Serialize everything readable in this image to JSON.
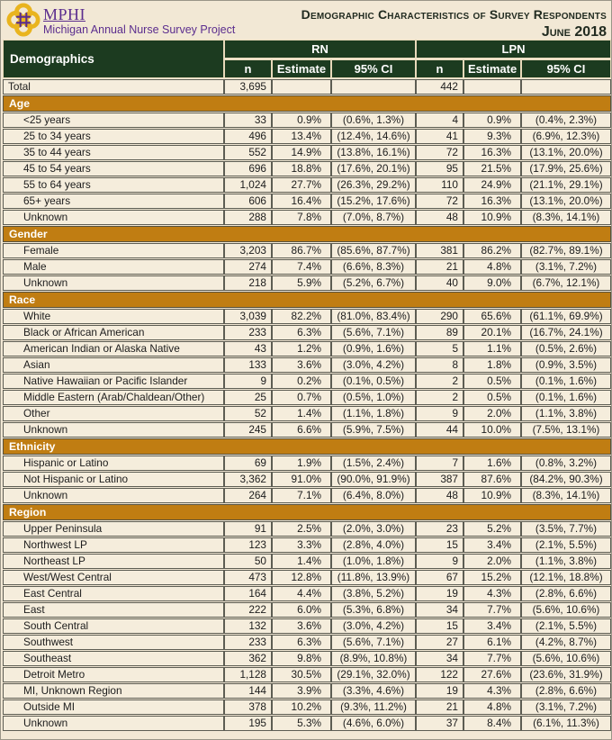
{
  "header": {
    "logo_acronym": "MPHI",
    "logo_subtitle": "Michigan Annual Nurse Survey Project",
    "logo_icon": "quatrefoil-knot-icon",
    "title": "Demographic Characteristics of Survey Respondents",
    "date": "June 2018"
  },
  "colors": {
    "header_green": "#1c3b20",
    "section_orange": "#c07d12",
    "brand_purple": "#5b2d8e",
    "logo_gold": "#e9b41f",
    "page_beige": "#f2e8d5",
    "cell_beige": "#f5eddc"
  },
  "table": {
    "corner_label": "Demographics",
    "group_rn": "RN",
    "group_lpn": "LPN",
    "subheaders": [
      "n",
      "Estimate",
      "95% CI"
    ],
    "total_row": {
      "label": "Total",
      "rn_n": "3,695",
      "lpn_n": "442"
    },
    "sections": [
      {
        "label": "Age",
        "rows": [
          {
            "label": "<25 years",
            "rn": [
              "33",
              "0.9%",
              "(0.6%, 1.3%)"
            ],
            "lpn": [
              "4",
              "0.9%",
              "(0.4%, 2.3%)"
            ]
          },
          {
            "label": "25 to 34 years",
            "rn": [
              "496",
              "13.4%",
              "(12.4%, 14.6%)"
            ],
            "lpn": [
              "41",
              "9.3%",
              "(6.9%, 12.3%)"
            ]
          },
          {
            "label": "35 to 44 years",
            "rn": [
              "552",
              "14.9%",
              "(13.8%, 16.1%)"
            ],
            "lpn": [
              "72",
              "16.3%",
              "(13.1%, 20.0%)"
            ]
          },
          {
            "label": "45 to 54 years",
            "rn": [
              "696",
              "18.8%",
              "(17.6%, 20.1%)"
            ],
            "lpn": [
              "95",
              "21.5%",
              "(17.9%, 25.6%)"
            ]
          },
          {
            "label": "55 to 64 years",
            "rn": [
              "1,024",
              "27.7%",
              "(26.3%, 29.2%)"
            ],
            "lpn": [
              "110",
              "24.9%",
              "(21.1%, 29.1%)"
            ]
          },
          {
            "label": "65+ years",
            "rn": [
              "606",
              "16.4%",
              "(15.2%, 17.6%)"
            ],
            "lpn": [
              "72",
              "16.3%",
              "(13.1%, 20.0%)"
            ]
          },
          {
            "label": "Unknown",
            "rn": [
              "288",
              "7.8%",
              "(7.0%, 8.7%)"
            ],
            "lpn": [
              "48",
              "10.9%",
              "(8.3%, 14.1%)"
            ]
          }
        ]
      },
      {
        "label": "Gender",
        "rows": [
          {
            "label": "Female",
            "rn": [
              "3,203",
              "86.7%",
              "(85.6%, 87.7%)"
            ],
            "lpn": [
              "381",
              "86.2%",
              "(82.7%, 89.1%)"
            ]
          },
          {
            "label": "Male",
            "rn": [
              "274",
              "7.4%",
              "(6.6%, 8.3%)"
            ],
            "lpn": [
              "21",
              "4.8%",
              "(3.1%, 7.2%)"
            ]
          },
          {
            "label": "Unknown",
            "rn": [
              "218",
              "5.9%",
              "(5.2%, 6.7%)"
            ],
            "lpn": [
              "40",
              "9.0%",
              "(6.7%, 12.1%)"
            ]
          }
        ]
      },
      {
        "label": "Race",
        "rows": [
          {
            "label": "White",
            "rn": [
              "3,039",
              "82.2%",
              "(81.0%, 83.4%)"
            ],
            "lpn": [
              "290",
              "65.6%",
              "(61.1%, 69.9%)"
            ]
          },
          {
            "label": "Black or African American",
            "rn": [
              "233",
              "6.3%",
              "(5.6%, 7.1%)"
            ],
            "lpn": [
              "89",
              "20.1%",
              "(16.7%, 24.1%)"
            ]
          },
          {
            "label": "American Indian or Alaska Native",
            "rn": [
              "43",
              "1.2%",
              "(0.9%, 1.6%)"
            ],
            "lpn": [
              "5",
              "1.1%",
              "(0.5%, 2.6%)"
            ]
          },
          {
            "label": "Asian",
            "rn": [
              "133",
              "3.6%",
              "(3.0%, 4.2%)"
            ],
            "lpn": [
              "8",
              "1.8%",
              "(0.9%, 3.5%)"
            ]
          },
          {
            "label": "Native Hawaiian or Pacific Islander",
            "rn": [
              "9",
              "0.2%",
              "(0.1%, 0.5%)"
            ],
            "lpn": [
              "2",
              "0.5%",
              "(0.1%, 1.6%)"
            ]
          },
          {
            "label": "Middle Eastern (Arab/Chaldean/Other)",
            "rn": [
              "25",
              "0.7%",
              "(0.5%, 1.0%)"
            ],
            "lpn": [
              "2",
              "0.5%",
              "(0.1%, 1.6%)"
            ]
          },
          {
            "label": "Other",
            "rn": [
              "52",
              "1.4%",
              "(1.1%, 1.8%)"
            ],
            "lpn": [
              "9",
              "2.0%",
              "(1.1%, 3.8%)"
            ]
          },
          {
            "label": "Unknown",
            "rn": [
              "245",
              "6.6%",
              "(5.9%, 7.5%)"
            ],
            "lpn": [
              "44",
              "10.0%",
              "(7.5%, 13.1%)"
            ]
          }
        ]
      },
      {
        "label": "Ethnicity",
        "rows": [
          {
            "label": "Hispanic or Latino",
            "rn": [
              "69",
              "1.9%",
              "(1.5%, 2.4%)"
            ],
            "lpn": [
              "7",
              "1.6%",
              "(0.8%, 3.2%)"
            ]
          },
          {
            "label": "Not Hispanic or Latino",
            "rn": [
              "3,362",
              "91.0%",
              "(90.0%, 91.9%)"
            ],
            "lpn": [
              "387",
              "87.6%",
              "(84.2%, 90.3%)"
            ]
          },
          {
            "label": "Unknown",
            "rn": [
              "264",
              "7.1%",
              "(6.4%, 8.0%)"
            ],
            "lpn": [
              "48",
              "10.9%",
              "(8.3%, 14.1%)"
            ]
          }
        ]
      },
      {
        "label": "Region",
        "rows": [
          {
            "label": "Upper Peninsula",
            "rn": [
              "91",
              "2.5%",
              "(2.0%, 3.0%)"
            ],
            "lpn": [
              "23",
              "5.2%",
              "(3.5%, 7.7%)"
            ]
          },
          {
            "label": "Northwest LP",
            "rn": [
              "123",
              "3.3%",
              "(2.8%, 4.0%)"
            ],
            "lpn": [
              "15",
              "3.4%",
              "(2.1%, 5.5%)"
            ]
          },
          {
            "label": "Northeast LP",
            "rn": [
              "50",
              "1.4%",
              "(1.0%, 1.8%)"
            ],
            "lpn": [
              "9",
              "2.0%",
              "(1.1%, 3.8%)"
            ]
          },
          {
            "label": "West/West Central",
            "rn": [
              "473",
              "12.8%",
              "(11.8%, 13.9%)"
            ],
            "lpn": [
              "67",
              "15.2%",
              "(12.1%, 18.8%)"
            ]
          },
          {
            "label": "East Central",
            "rn": [
              "164",
              "4.4%",
              "(3.8%, 5.2%)"
            ],
            "lpn": [
              "19",
              "4.3%",
              "(2.8%, 6.6%)"
            ]
          },
          {
            "label": "East",
            "rn": [
              "222",
              "6.0%",
              "(5.3%, 6.8%)"
            ],
            "lpn": [
              "34",
              "7.7%",
              "(5.6%, 10.6%)"
            ]
          },
          {
            "label": "South Central",
            "rn": [
              "132",
              "3.6%",
              "(3.0%, 4.2%)"
            ],
            "lpn": [
              "15",
              "3.4%",
              "(2.1%, 5.5%)"
            ]
          },
          {
            "label": "Southwest",
            "rn": [
              "233",
              "6.3%",
              "(5.6%, 7.1%)"
            ],
            "lpn": [
              "27",
              "6.1%",
              "(4.2%, 8.7%)"
            ]
          },
          {
            "label": "Southeast",
            "rn": [
              "362",
              "9.8%",
              "(8.9%, 10.8%)"
            ],
            "lpn": [
              "34",
              "7.7%",
              "(5.6%, 10.6%)"
            ]
          },
          {
            "label": "Detroit Metro",
            "rn": [
              "1,128",
              "30.5%",
              "(29.1%, 32.0%)"
            ],
            "lpn": [
              "122",
              "27.6%",
              "(23.6%, 31.9%)"
            ]
          },
          {
            "label": "MI, Unknown Region",
            "rn": [
              "144",
              "3.9%",
              "(3.3%, 4.6%)"
            ],
            "lpn": [
              "19",
              "4.3%",
              "(2.8%, 6.6%)"
            ]
          },
          {
            "label": "Outside MI",
            "rn": [
              "378",
              "10.2%",
              "(9.3%, 11.2%)"
            ],
            "lpn": [
              "21",
              "4.8%",
              "(3.1%, 7.2%)"
            ]
          },
          {
            "label": "Unknown",
            "rn": [
              "195",
              "5.3%",
              "(4.6%, 6.0%)"
            ],
            "lpn": [
              "37",
              "8.4%",
              "(6.1%, 11.3%)"
            ]
          }
        ]
      }
    ]
  }
}
